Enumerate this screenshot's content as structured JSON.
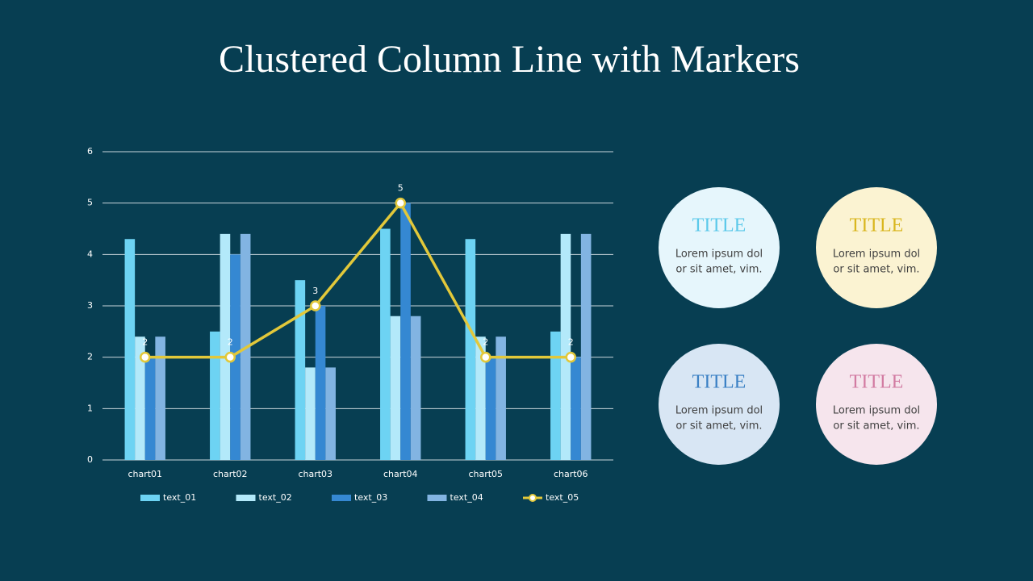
{
  "chart_data": {
    "type": "bar",
    "title": "Clustered Column Line with Markers",
    "categories": [
      "chart01",
      "chart02",
      "chart03",
      "chart04",
      "chart05",
      "chart06"
    ],
    "series": [
      {
        "name": "text_01",
        "color": "#6dd3f3",
        "values": [
          4.3,
          2.5,
          3.5,
          4.5,
          4.3,
          2.5
        ]
      },
      {
        "name": "text_02",
        "color": "#b3e9fa",
        "values": [
          2.4,
          4.4,
          1.8,
          2.8,
          2.4,
          4.4
        ]
      },
      {
        "name": "text_03",
        "color": "#3588d2",
        "values": [
          2,
          4,
          3,
          5,
          2,
          2
        ]
      },
      {
        "name": "text_04",
        "color": "#82b4e2",
        "values": [
          2.4,
          4.4,
          1.8,
          2.8,
          2.4,
          4.4
        ]
      },
      {
        "name": "text_05",
        "color": "#e2c83a",
        "type": "line",
        "data_labels": true,
        "values": [
          2,
          2,
          3,
          5,
          2,
          2
        ]
      }
    ],
    "ylim": [
      0,
      6
    ],
    "yticks": [
      0,
      1,
      2,
      3,
      4,
      5,
      6
    ],
    "grid": true,
    "legend": "bottom"
  },
  "cards": [
    {
      "title": "TITLE",
      "lines": [
        "Lorem ipsum dol",
        "or sit amet, vim."
      ],
      "color": "#e6f6fc",
      "title_color": "#5cc9ea"
    },
    {
      "title": "TITLE",
      "lines": [
        "Lorem ipsum dol",
        "or sit amet, vim."
      ],
      "color": "#fbf3d2",
      "title_color": "#d9b61e"
    },
    {
      "title": "TITLE",
      "lines": [
        "Lorem ipsum dol",
        "or sit amet, vim."
      ],
      "color": "#d8e6f4",
      "title_color": "#3a80c4"
    },
    {
      "title": "TITLE",
      "lines": [
        "Lorem ipsum dol",
        "or sit amet, vim."
      ],
      "color": "#f6e5ed",
      "title_color": "#d27ba2"
    }
  ]
}
